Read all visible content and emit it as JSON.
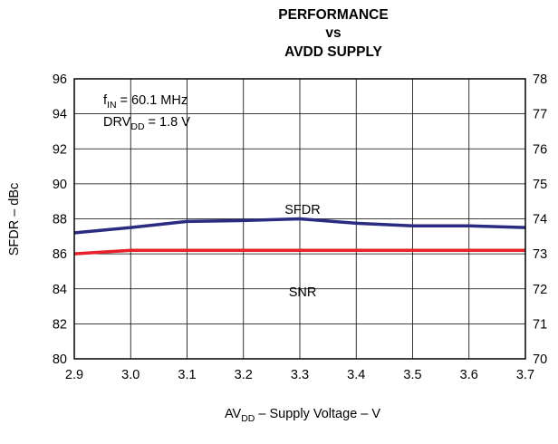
{
  "chart_data": {
    "type": "line",
    "title": [
      "PERFORMANCE",
      "vs",
      "AVDD SUPPLY"
    ],
    "xlabel": {
      "main": "AV",
      "sub": "DD",
      "rest": " – Supply Voltage – V"
    },
    "ylabel_left": "SFDR – dBc",
    "ylabel_right": "",
    "xlim": [
      2.9,
      3.7
    ],
    "ylim_left": [
      80,
      96
    ],
    "ylim_right": [
      70,
      78
    ],
    "x_ticks": [
      "2.9",
      "3.0",
      "3.1",
      "3.2",
      "3.3",
      "3.4",
      "3.5",
      "3.6",
      "3.7"
    ],
    "y_ticks_left": [
      "96",
      "94",
      "92",
      "90",
      "88",
      "86",
      "84",
      "82",
      "80"
    ],
    "y_ticks_right": [
      "78",
      "77",
      "76",
      "75",
      "74",
      "73",
      "72",
      "71",
      "70"
    ],
    "grid": true,
    "annotations": {
      "line1": {
        "main": "f",
        "sub": "IN",
        "rest": " = 60.1 MHz"
      },
      "line2": {
        "main": "DRV",
        "sub": "DD",
        "rest": " = 1.8 V"
      }
    },
    "series": [
      {
        "name": "SFDR",
        "axis": "left",
        "color": "#2b2b82",
        "x": [
          2.9,
          3.0,
          3.1,
          3.2,
          3.3,
          3.4,
          3.5,
          3.6,
          3.7
        ],
        "y": [
          87.2,
          87.5,
          87.85,
          87.9,
          88.0,
          87.75,
          87.6,
          87.6,
          87.5
        ]
      },
      {
        "name": "SNR",
        "axis": "right",
        "color": "#e8202a",
        "x": [
          2.9,
          3.0,
          3.1,
          3.2,
          3.3,
          3.4,
          3.5,
          3.6,
          3.7
        ],
        "y": [
          73.0,
          73.1,
          73.1,
          73.1,
          73.1,
          73.1,
          73.1,
          73.1,
          73.1
        ]
      }
    ]
  }
}
